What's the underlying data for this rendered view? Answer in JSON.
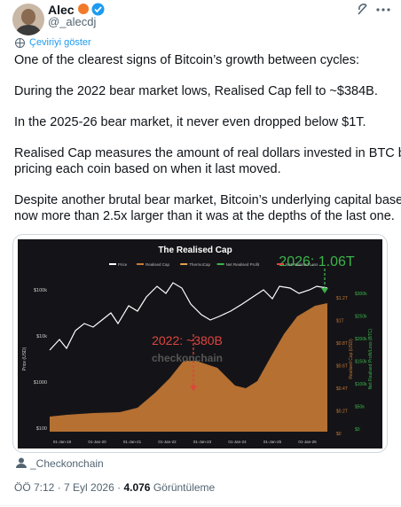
{
  "header": {
    "name": "Alec",
    "handle": "@_alecdj"
  },
  "translate": "Çeviriyi göster",
  "tweet": {
    "paragraphs": [
      [
        "One of the clearest signs of Bitcoin’s growth between cycles:"
      ],
      [
        "During the 2022 bear market lows, Realised Cap fell to ~$384B."
      ],
      [
        "In the 2025-26 bear market, it never even dropped below $1T."
      ],
      [
        "Realised Cap measures the amount of real dollars invested in BTC by",
        "pricing each coin based on when it last moved."
      ],
      [
        "Despite another brutal bear market, Bitcoin’s underlying capital base is",
        "now more than 2.5x larger than it was at the depths of the last one."
      ]
    ]
  },
  "image": {
    "title": "The Realised Cap",
    "legend": [
      "Price",
      "Realised Cap",
      "ThermoCap",
      "Net Realised Profit",
      "Net Realised Loss"
    ],
    "annotation_2026": "2026: 1.06T",
    "annotation_2022": "2022: ~380B",
    "watermark": "checkonchain",
    "left_axis_title": "Price (USD)",
    "right_axis_title": "Realised Cap (USD)",
    "right2_axis_title": "Net Realised Profit/Loss (BTC)",
    "left_ticks": [
      "$100k",
      "$10k",
      "$1000",
      "$100"
    ],
    "right_ticks": [
      "$1.2T",
      "$1T",
      "$0.8T",
      "$0.6T",
      "$0.4T",
      "$0.2T",
      "$0"
    ],
    "right2_ticks": [
      "$300k",
      "$250k",
      "$200k",
      "$150k",
      "$100k",
      "$50k",
      "$0"
    ],
    "x_ticks": [
      "01-Jan-19",
      "01-Jan-20",
      "01-Jan-21",
      "01-Jan-22",
      "01-Jan-23",
      "01-Jan-24",
      "01-Jan-25",
      "01-Jan-26"
    ]
  },
  "attribution": "_Checkonchain",
  "footer": {
    "time": "ÖÖ 7:12",
    "separator": "·",
    "date": "7 Eyl 2026",
    "views": "4.076",
    "views_label": "Görüntüleme"
  }
}
